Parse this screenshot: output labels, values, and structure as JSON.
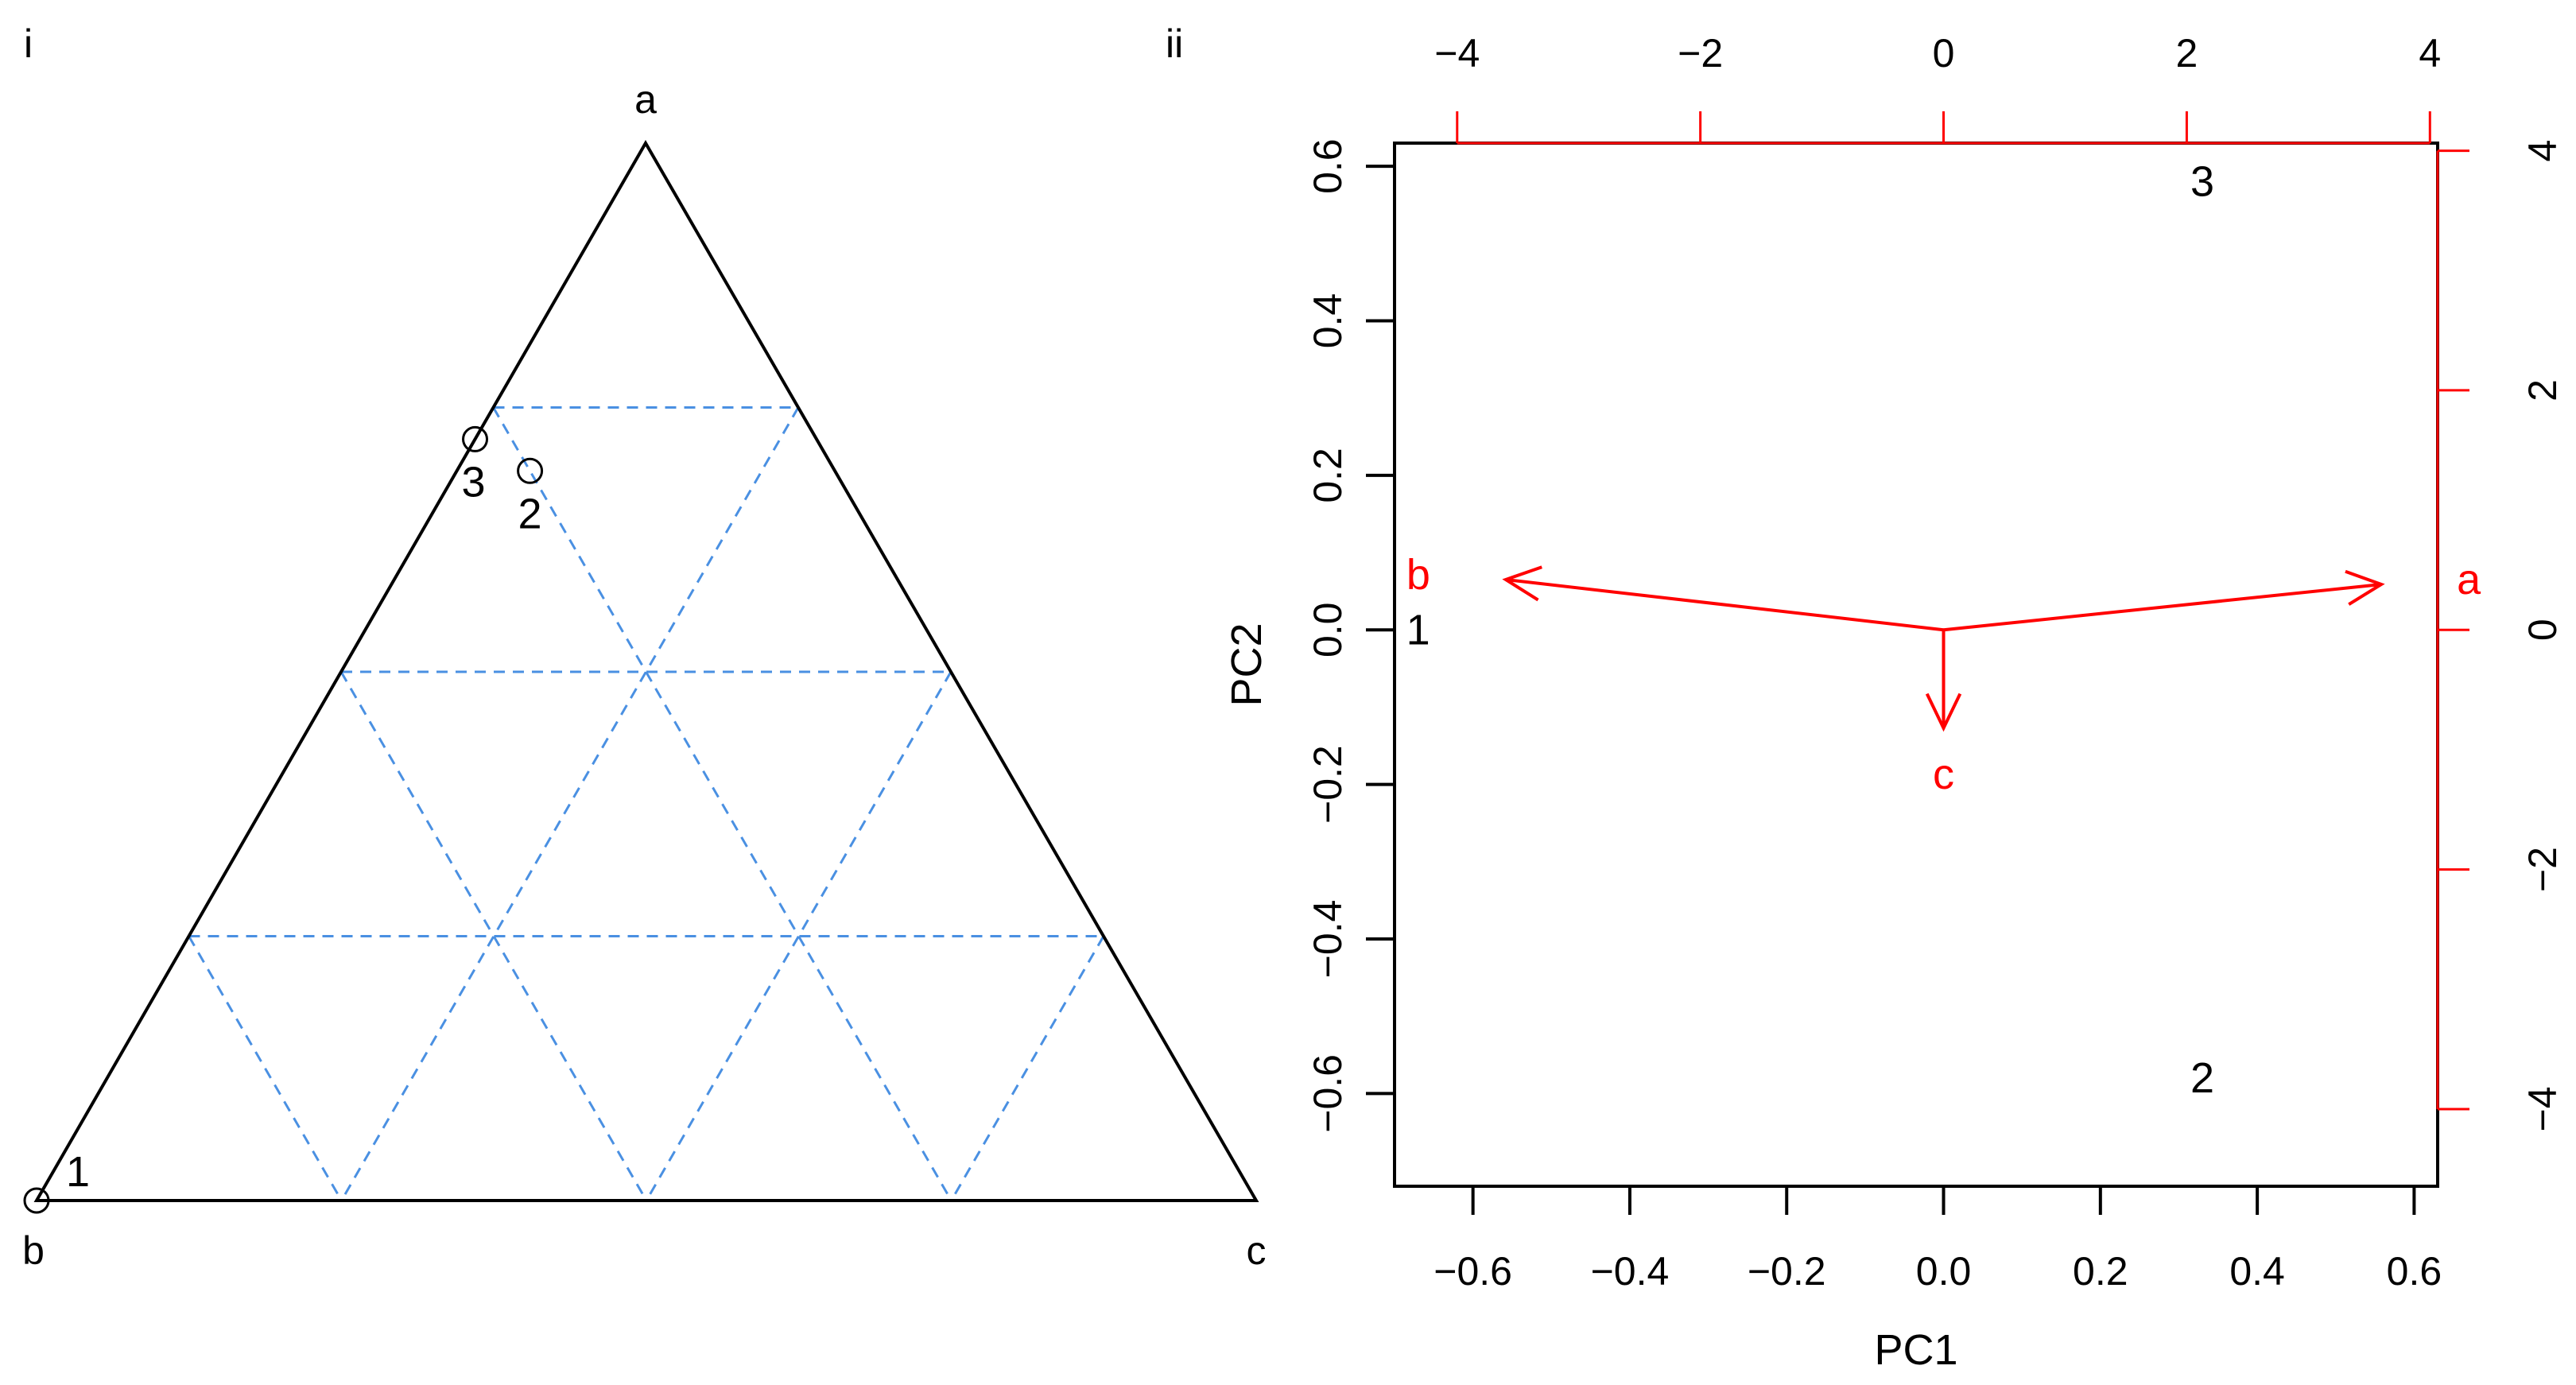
{
  "chart_data": [
    {
      "panel_label": "i",
      "type": "scatter",
      "subtype": "ternary",
      "vertex_labels": [
        "a",
        "b",
        "c"
      ],
      "grid": {
        "style": "dashed",
        "color": "#4a90e2",
        "divisions": 4
      },
      "points": [
        {
          "label": "1",
          "a": 0.0,
          "b": 1.0,
          "c": 0.0
        },
        {
          "label": "2",
          "a": 0.69,
          "b": 0.25,
          "c": 0.06
        },
        {
          "label": "3",
          "a": 0.72,
          "b": 0.28,
          "c": 0.0
        }
      ]
    },
    {
      "panel_label": "ii",
      "type": "scatter",
      "subtype": "biplot",
      "xlabel": "PC1",
      "ylabel": "PC2",
      "xlim": [
        -0.7,
        0.63
      ],
      "ylim": [
        -0.72,
        0.63
      ],
      "xticks": [
        -0.6,
        -0.4,
        -0.2,
        0.0,
        0.2,
        0.4,
        0.6
      ],
      "xtick_labels": [
        "−0.6",
        "−0.4",
        "−0.2",
        "0.0",
        "0.2",
        "0.4",
        "0.6"
      ],
      "yticks": [
        -0.6,
        -0.4,
        -0.2,
        0.0,
        0.2,
        0.4,
        0.6
      ],
      "ytick_labels": [
        "−0.6",
        "−0.4",
        "−0.2",
        "0.0",
        "0.2",
        "0.4",
        "0.6"
      ],
      "secondary_axes": {
        "color": "#ff0000",
        "top_ticks": [
          -4,
          -2,
          0,
          2,
          4
        ],
        "top_tick_labels": [
          "−4",
          "−2",
          "0",
          "2",
          "4"
        ],
        "right_ticks": [
          -4,
          -2,
          0,
          2,
          4
        ],
        "right_tick_labels": [
          "−4",
          "−2",
          "0",
          "2",
          "4"
        ],
        "scale_per_primary_unit": 6.45
      },
      "observations": [
        {
          "label": "1",
          "x": -0.67,
          "y": 0.0
        },
        {
          "label": "2",
          "x": 0.33,
          "y": -0.58
        },
        {
          "label": "3",
          "x": 0.33,
          "y": 0.58
        }
      ],
      "loadings": [
        {
          "label": "a",
          "x": 3.6,
          "y": 0.38
        },
        {
          "label": "b",
          "x": -3.6,
          "y": 0.42
        },
        {
          "label": "c",
          "x": 0.0,
          "y": -0.82
        }
      ],
      "loading_color": "#ff0000"
    }
  ]
}
